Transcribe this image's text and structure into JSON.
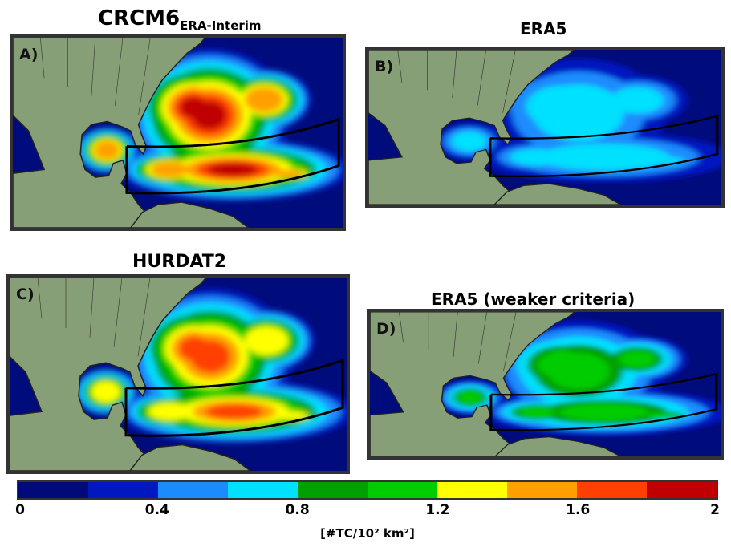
{
  "panels": [
    {
      "id": "A",
      "label": "A)",
      "title": "CRCM6",
      "title_sub": "ERA-Interim",
      "intensity": 1.0
    },
    {
      "id": "B",
      "label": "B)",
      "title": "ERA5",
      "title_sub": "",
      "intensity": 0.3
    },
    {
      "id": "C",
      "label": "C)",
      "title": "HURDAT2",
      "title_sub": "",
      "intensity": 0.9
    },
    {
      "id": "D",
      "label": "D)",
      "title": "ERA5 (weaker criteria)",
      "title_sub": "",
      "intensity": 0.5
    }
  ],
  "colors": {
    "ocean": "#000c7c",
    "land": "#879f76"
  },
  "colorbar": {
    "min": 0,
    "max": 2,
    "step": 0.2,
    "colors": [
      "#000a78",
      "#0018c0",
      "#1a8cff",
      "#00e0ff",
      "#00a000",
      "#00cc00",
      "#ffff00",
      "#ffa000",
      "#ff4000",
      "#c00000"
    ],
    "ticks": [
      "0",
      "0.4",
      "0.8",
      "1.2",
      "1.6",
      "2"
    ],
    "unit_label": "[#TC/10² km²]"
  }
}
